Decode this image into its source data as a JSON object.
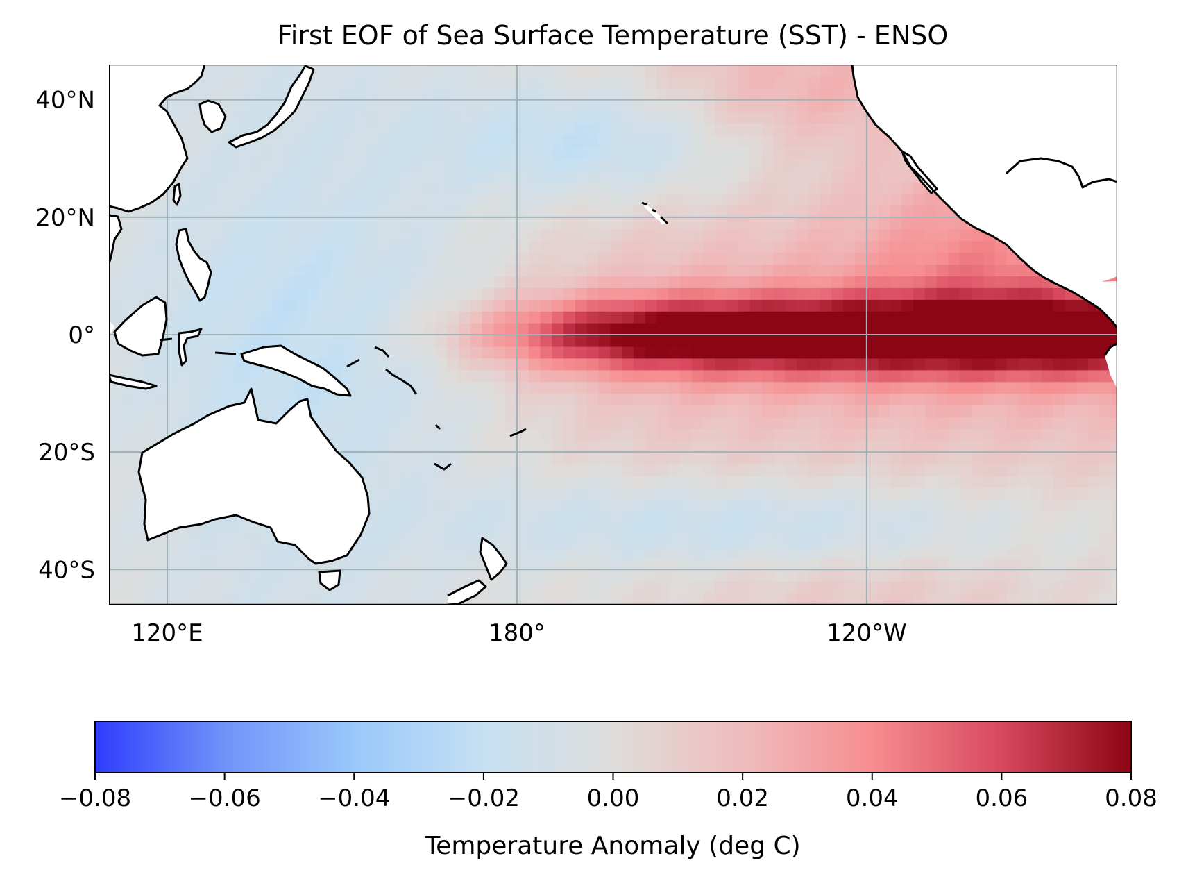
{
  "title": "First EOF of Sea Surface Temperature (SST) - ENSO",
  "map": {
    "lon_range_deg_east": [
      110,
      283
    ],
    "lat_range": [
      -46,
      46
    ],
    "lon_ticks": [
      {
        "value": 120,
        "label": "120°E"
      },
      {
        "value": 180,
        "label": "180°"
      },
      {
        "value": 240,
        "label": "120°W"
      }
    ],
    "lat_ticks": [
      {
        "value": 40,
        "label": "40°N"
      },
      {
        "value": 20,
        "label": "20°N"
      },
      {
        "value": 0,
        "label": "0°"
      },
      {
        "value": -20,
        "label": "20°S"
      },
      {
        "value": -40,
        "label": "40°S"
      }
    ],
    "gridlines": true,
    "gridline_color": "#9fb3b8",
    "land_color": "#ffffff",
    "coastline_color": "#000000"
  },
  "colorbar": {
    "label": "Temperature Anomaly (deg C)",
    "range": [
      -0.08,
      0.08
    ],
    "ticks": [
      {
        "value": -0.08,
        "label": "−0.08"
      },
      {
        "value": -0.06,
        "label": "−0.06"
      },
      {
        "value": -0.04,
        "label": "−0.04"
      },
      {
        "value": -0.02,
        "label": "−0.02"
      },
      {
        "value": 0.0,
        "label": "0.00"
      },
      {
        "value": 0.02,
        "label": "0.02"
      },
      {
        "value": 0.04,
        "label": "0.04"
      },
      {
        "value": 0.06,
        "label": "0.06"
      },
      {
        "value": 0.08,
        "label": "0.08"
      }
    ],
    "colormap": [
      "#2f3dfd",
      "#6f93f8",
      "#99c8fb",
      "#c6e0f2",
      "#dedddb",
      "#efbcbc",
      "#f68d90",
      "#d8485e",
      "#8c0514"
    ],
    "placement": "bottom"
  }
}
